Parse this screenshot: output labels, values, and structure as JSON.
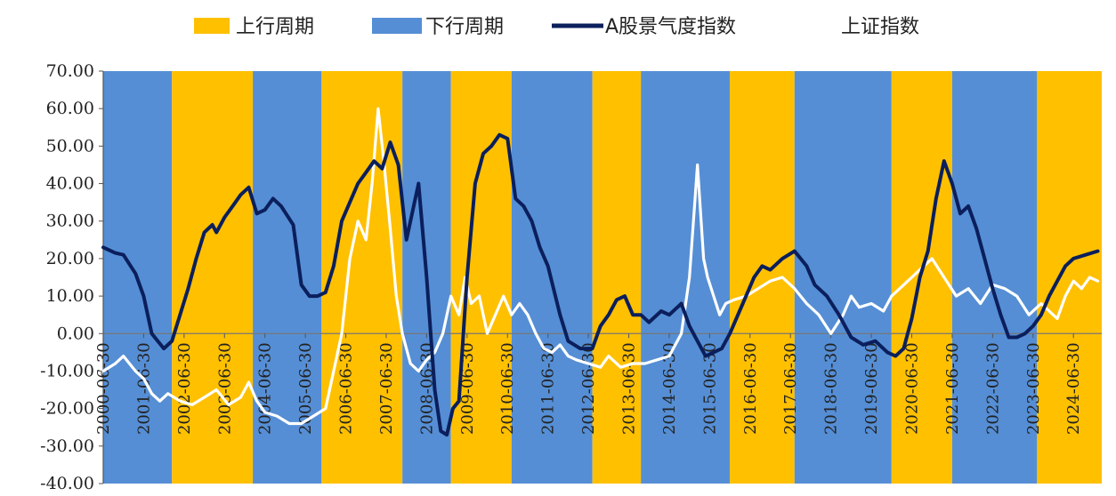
{
  "chart_data": {
    "type": "line",
    "legend": {
      "position": "top",
      "entries": [
        {
          "name": "上行周期",
          "color": "#FFC000"
        },
        {
          "name": "下行周期",
          "color": "#558ED5"
        },
        {
          "name": "A股景气度指数",
          "color": "#0B1F5C"
        },
        {
          "name": "上证指数",
          "color": "#FFFFFF"
        }
      ]
    },
    "ylim": [
      -40,
      70
    ],
    "yticks": [
      "70.00",
      "60.00",
      "50.00",
      "40.00",
      "30.00",
      "20.00",
      "10.00",
      "0.00",
      "-10.00",
      "-20.00",
      "-30.00",
      "-40.00"
    ],
    "yticks_values": [
      70,
      60,
      50,
      40,
      30,
      20,
      10,
      0,
      -10,
      -20,
      -30,
      -40
    ],
    "xlim": [
      2000.5,
      2025.2
    ],
    "xticks": [
      "2000-06-30",
      "2001-06-30",
      "2002-06-30",
      "2003-06-30",
      "2004-06-30",
      "2005-06-30",
      "2006-06-30",
      "2007-06-30",
      "2008-06-30",
      "2009-06-30",
      "2010-06-30",
      "2011-06-30",
      "2012-06-30",
      "2013-06-30",
      "2014-06-30",
      "2015-06-30",
      "2016-06-30",
      "2017-06-30",
      "2018-06-30",
      "2019-06-30",
      "2020-06-30",
      "2021-06-30",
      "2022-06-30",
      "2023-06-30",
      "2024-06-30"
    ],
    "xticks_values": [
      2000.5,
      2001.5,
      2002.5,
      2003.5,
      2004.5,
      2005.5,
      2006.5,
      2007.5,
      2008.5,
      2009.5,
      2010.5,
      2011.5,
      2012.5,
      2013.5,
      2014.5,
      2015.5,
      2016.5,
      2017.5,
      2018.5,
      2019.5,
      2020.5,
      2021.5,
      2022.5,
      2023.5,
      2024.5
    ],
    "periods": [
      {
        "type": "下行周期",
        "start": 2000.5,
        "end": 2002.2
      },
      {
        "type": "上行周期",
        "start": 2002.2,
        "end": 2004.2
      },
      {
        "type": "下行周期",
        "start": 2004.2,
        "end": 2005.9
      },
      {
        "type": "上行周期",
        "start": 2005.9,
        "end": 2007.9
      },
      {
        "type": "下行周期",
        "start": 2007.9,
        "end": 2009.1
      },
      {
        "type": "上行周期",
        "start": 2009.1,
        "end": 2010.6
      },
      {
        "type": "下行周期",
        "start": 2010.6,
        "end": 2012.6
      },
      {
        "type": "上行周期",
        "start": 2012.6,
        "end": 2013.8
      },
      {
        "type": "下行周期",
        "start": 2013.8,
        "end": 2016.0
      },
      {
        "type": "上行周期",
        "start": 2016.0,
        "end": 2017.6
      },
      {
        "type": "下行周期",
        "start": 2017.6,
        "end": 2020.0
      },
      {
        "type": "上行周期",
        "start": 2020.0,
        "end": 2021.5
      },
      {
        "type": "下行周期",
        "start": 2021.5,
        "end": 2023.6
      },
      {
        "type": "上行周期",
        "start": 2023.6,
        "end": 2025.2
      }
    ],
    "series": [
      {
        "name": "A股景气度指数",
        "color": "#0B1F5C",
        "x": [
          2000.5,
          2000.8,
          2001.0,
          2001.3,
          2001.5,
          2001.7,
          2001.85,
          2002.0,
          2002.2,
          2002.4,
          2002.6,
          2002.8,
          2003.0,
          2003.2,
          2003.3,
          2003.5,
          2003.7,
          2003.9,
          2004.1,
          2004.3,
          2004.5,
          2004.7,
          2004.9,
          2005.2,
          2005.4,
          2005.6,
          2005.8,
          2006.0,
          2006.2,
          2006.4,
          2006.6,
          2006.8,
          2007.0,
          2007.2,
          2007.4,
          2007.6,
          2007.8,
          2008.0,
          2008.3,
          2008.5,
          2008.7,
          2008.85,
          2009.0,
          2009.15,
          2009.3,
          2009.5,
          2009.7,
          2009.9,
          2010.1,
          2010.3,
          2010.5,
          2010.7,
          2010.9,
          2011.1,
          2011.3,
          2011.5,
          2011.8,
          2012.0,
          2012.3,
          2012.6,
          2012.8,
          2013.0,
          2013.2,
          2013.4,
          2013.6,
          2013.8,
          2014.0,
          2014.3,
          2014.5,
          2014.8,
          2015.0,
          2015.2,
          2015.4,
          2015.6,
          2015.8,
          2016.0,
          2016.2,
          2016.4,
          2016.6,
          2016.8,
          2017.0,
          2017.3,
          2017.6,
          2017.9,
          2018.1,
          2018.4,
          2018.7,
          2019.0,
          2019.3,
          2019.6,
          2019.9,
          2020.1,
          2020.3,
          2020.5,
          2020.7,
          2020.9,
          2021.1,
          2021.3,
          2021.5,
          2021.7,
          2021.9,
          2022.1,
          2022.3,
          2022.5,
          2022.7,
          2022.9,
          2023.1,
          2023.3,
          2023.5,
          2023.7,
          2023.9,
          2024.1,
          2024.3,
          2024.5,
          2024.8,
          2025.1
        ],
        "y": [
          23,
          21.5,
          21,
          16,
          10,
          0,
          -2,
          -4,
          -2,
          5,
          12,
          20,
          27,
          29,
          27,
          31,
          34,
          37,
          39,
          32,
          33,
          36,
          34,
          29,
          13,
          10,
          10,
          11,
          18,
          30,
          35,
          40,
          43,
          46,
          44,
          51,
          45,
          25,
          40,
          15,
          -15,
          -26,
          -27,
          -20,
          -18,
          15,
          40,
          48,
          50,
          53,
          52,
          36,
          34,
          30,
          23,
          18,
          5,
          -2,
          -4,
          -4,
          2,
          5,
          9,
          10,
          5,
          5,
          3,
          6,
          5,
          8,
          2,
          -2,
          -6,
          -5,
          -4,
          0,
          5,
          10,
          15,
          18,
          17,
          20,
          22,
          18,
          13,
          10,
          5,
          -1,
          -3,
          -2,
          -5,
          -6,
          -4,
          4,
          15,
          22,
          36,
          46,
          40,
          32,
          34,
          28,
          20,
          12,
          5,
          -1,
          -1,
          0,
          2,
          5,
          10,
          14,
          18,
          20,
          21,
          22
        ]
      },
      {
        "name": "上证指数",
        "color": "#FFFFFF",
        "x": [
          2000.5,
          2000.8,
          2001.0,
          2001.3,
          2001.5,
          2001.7,
          2001.9,
          2002.1,
          2002.4,
          2002.7,
          2003.0,
          2003.3,
          2003.6,
          2003.9,
          2004.1,
          2004.3,
          2004.5,
          2004.8,
          2005.1,
          2005.4,
          2005.7,
          2006.0,
          2006.2,
          2006.4,
          2006.6,
          2006.8,
          2007.0,
          2007.15,
          2007.3,
          2007.45,
          2007.6,
          2007.75,
          2007.9,
          2008.1,
          2008.3,
          2008.5,
          2008.7,
          2008.9,
          2009.1,
          2009.3,
          2009.45,
          2009.6,
          2009.8,
          2010.0,
          2010.2,
          2010.4,
          2010.6,
          2010.8,
          2011.0,
          2011.2,
          2011.4,
          2011.6,
          2011.8,
          2012.0,
          2012.2,
          2012.5,
          2012.8,
          2013.0,
          2013.3,
          2013.6,
          2013.9,
          2014.2,
          2014.5,
          2014.8,
          2015.0,
          2015.2,
          2015.35,
          2015.45,
          2015.6,
          2015.75,
          2015.9,
          2016.1,
          2016.4,
          2016.7,
          2017.0,
          2017.3,
          2017.6,
          2017.9,
          2018.2,
          2018.5,
          2018.8,
          2019.0,
          2019.2,
          2019.5,
          2019.8,
          2020.0,
          2020.2,
          2020.5,
          2020.8,
          2021.0,
          2021.3,
          2021.6,
          2021.9,
          2022.2,
          2022.5,
          2022.8,
          2023.1,
          2023.4,
          2023.7,
          2023.9,
          2024.1,
          2024.3,
          2024.5,
          2024.7,
          2024.9,
          2025.1
        ],
        "y": [
          -10,
          -8,
          -6,
          -10,
          -12,
          -16,
          -18,
          -16,
          -18,
          -19,
          -17,
          -15,
          -19,
          -17,
          -13,
          -18,
          -21,
          -22,
          -24,
          -24,
          -22,
          -20,
          -10,
          0,
          20,
          30,
          25,
          40,
          60,
          45,
          28,
          10,
          0,
          -8,
          -10,
          -7,
          -5,
          0,
          10,
          5,
          15,
          8,
          10,
          0,
          5,
          10,
          5,
          8,
          5,
          0,
          -4,
          -5,
          -3,
          -6,
          -7,
          -8,
          -9,
          -6,
          -9,
          -8,
          -8,
          -7,
          -6,
          0,
          15,
          45,
          20,
          15,
          10,
          5,
          8,
          9,
          10,
          12,
          14,
          15,
          12,
          8,
          5,
          0,
          5,
          10,
          7,
          8,
          6,
          10,
          12,
          15,
          18,
          20,
          15,
          10,
          12,
          8,
          13,
          12,
          10,
          5,
          8,
          6,
          4,
          10,
          14,
          12,
          15,
          14
        ]
      }
    ]
  }
}
